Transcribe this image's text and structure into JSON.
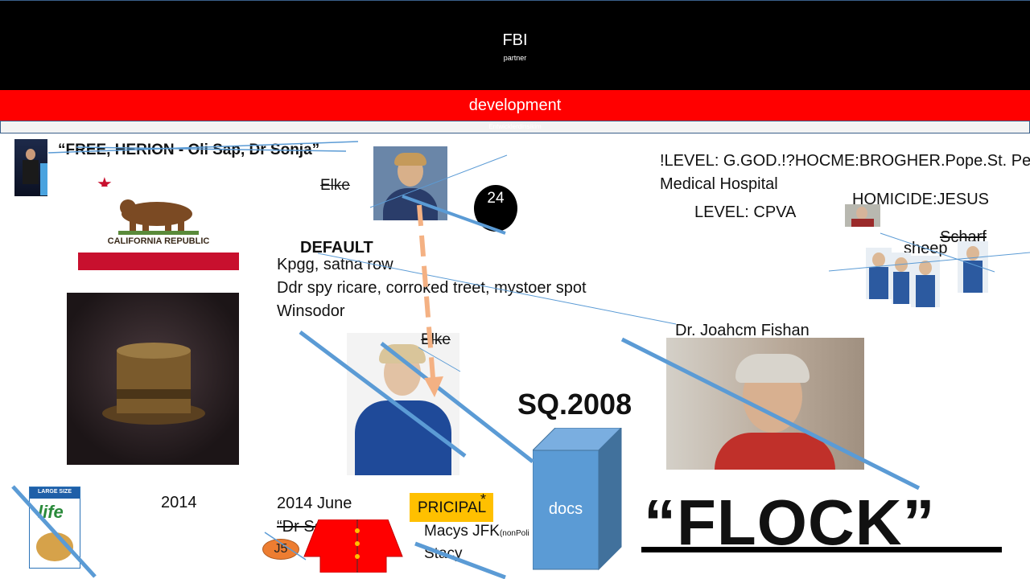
{
  "header": {
    "title": "FBI",
    "subtitle": "partner"
  },
  "banner": {
    "label": "development",
    "sublabel": "Entwicklerdinsikim"
  },
  "quote_top": "“FREE, HERION - Oli Sap, Dr Sonja”",
  "flag": {
    "text": "CALIFORNIA REPUBLIC",
    "star": "★"
  },
  "labels": {
    "elke_top": "Elke",
    "elke_mid": "Elke",
    "number_badge": "24",
    "default": "DEFAULT",
    "line1": "Kpgg, satna row",
    "line2": "Ddr spy ricare, corroked treet, mystoer spot",
    "line3": "Winsodor",
    "level_line": "!LEVEL: G.GOD.!?HOCME:BROGHER.Pope.St. Pe",
    "hospital": "Medical Hospital",
    "level_cpva": "LEVEL: CPVA",
    "homicide": "HOMICIDE:JESUS",
    "scharf": "Scharf",
    "sheep": "sheep",
    "dr_name": "Dr. Joahcm Fishan",
    "sq": "SQ.2008",
    "year_2014": "2014",
    "june": "2014 June",
    "dr_sonja": "“Dr Sonja”",
    "j5": "J5",
    "principal": "PRICIPAL",
    "asterisk": "*",
    "macys": "Macys JFK",
    "nonpoli": "(nonPoli",
    "stacy": "Stacy",
    "docs": "docs",
    "flock": "“FLOCK”",
    "cereal_size": "LARGE SIZE",
    "cereal_brand": "life"
  },
  "colors": {
    "header_bg": "#000000",
    "banner_red": "#ff0000",
    "strike_blue": "#5b9bd5",
    "arrow_orange": "#f4b183",
    "principal_bg": "#ffc000",
    "docs_blue": "#5b9bd5",
    "j5_orange": "#ed7d31",
    "flag_red": "#c8102e"
  }
}
